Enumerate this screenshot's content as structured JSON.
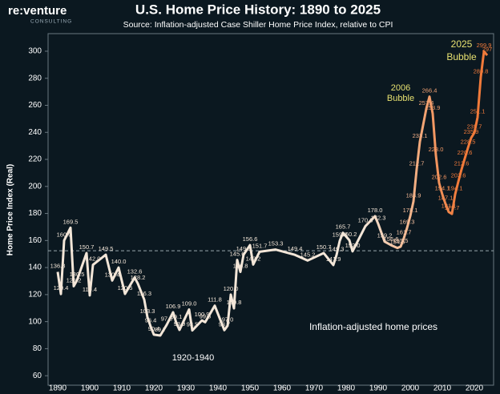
{
  "chart_data": {
    "type": "line",
    "title": "U.S. Home Price History: 1890 to 2025",
    "subtitle": "Source: Inflation-adjusted Case Shiller Home Price Index, relative to CPI",
    "logo": {
      "name": "re:venture",
      "tagline": "CONSULTING"
    },
    "y_label": "Home Price Index (Real)",
    "xlim": [
      1887,
      2026
    ],
    "ylim": [
      53,
      313
    ],
    "xticks": [
      1890,
      1900,
      1910,
      1920,
      1930,
      1940,
      1950,
      1960,
      1970,
      1980,
      1990,
      2000,
      2010,
      2020
    ],
    "yticks": [
      60,
      80,
      100,
      120,
      140,
      160,
      180,
      200,
      220,
      240,
      260,
      280,
      300
    ],
    "reference_line": 152.4,
    "colors": [
      "#f3e6d8",
      "#f07a3a"
    ],
    "annotations": [
      "2025",
      "Bubble",
      "2006",
      "Bubble",
      "1920-1940",
      "Inflation-adjusted home prices"
    ],
    "series": [
      {
        "name": "Inflation-adjusted home prices",
        "x": [
          1890,
          1891,
          1892,
          1894,
          1895,
          1896,
          1899,
          1900,
          1901,
          1905,
          1907,
          1909,
          1911,
          1914,
          1915,
          1917,
          1918,
          1919,
          1920,
          1922,
          1924,
          1926,
          1927,
          1928,
          1931,
          1932,
          1935,
          1936,
          1939,
          1942,
          1943,
          1944,
          1945,
          1946,
          1947,
          1948,
          1950,
          1951,
          1953,
          1958,
          1964,
          1968,
          1973,
          1976,
          1977,
          1978,
          1979,
          1981,
          1982,
          1986,
          1989,
          1990,
          1992,
          1994,
          1996,
          1997,
          1998,
          1999,
          2000,
          2001,
          2002,
          2003,
          2005,
          2006,
          2007,
          2008,
          2009,
          2010,
          2011,
          2012,
          2013,
          2014,
          2015,
          2016,
          2017,
          2018,
          2019,
          2020,
          2021,
          2022,
          2023,
          2024
        ],
        "values": [
          136.8,
          120.4,
          160.0,
          169.5,
          126.2,
          130.5,
          150.7,
          119.4,
          142.0,
          149.5,
          130.4,
          140.0,
          120.5,
          132.6,
          128.2,
          116.3,
          103.3,
          96.4,
          90.4,
          89.7,
          97.6,
          106.9,
          99.1,
          93.9,
          109.0,
          93.5,
          100.9,
          99.6,
          111.8,
          93.7,
          97.0,
          120.0,
          109.8,
          145.6,
          136.8,
          149.5,
          156.6,
          142.2,
          151.7,
          153.3,
          149.4,
          145.2,
          150.7,
          141.9,
          149.3,
          159.8,
          165.7,
          160.2,
          152.0,
          170.6,
          178.0,
          172.3,
          159.2,
          156.6,
          154.5,
          155.5,
          161.7,
          169.3,
          178.1,
          188.9,
          212.7,
          233.1,
          257.4,
          266.4,
          253.9,
          223.0,
          202.6,
          194.1,
          187.1,
          181.1,
          179.7,
          194.1,
          203.6,
          212.6,
          220.6,
          228.5,
          235.9,
          239.7,
          251.1,
          280.8,
          299.9,
          297
        ],
        "value_labels": [
          "136.8",
          "120.4",
          "160.0",
          "169.5",
          "126.2",
          "130.5",
          "150.7",
          "119.4",
          "142.0",
          "149.5",
          "130.4",
          "140.0",
          "120.5",
          "132.6",
          "128.2",
          "116.3",
          "103.3",
          "96.4",
          "90.4",
          "89.7",
          "97.6",
          "106.9",
          "99.1",
          "93.9",
          "109.0",
          "93.5",
          "100.9",
          "99.6",
          "111.8",
          "93.7",
          "97.0",
          "120.0",
          "109.8",
          "145.6",
          "136.8",
          "149.5",
          "156.6",
          "142.2",
          "151.7",
          "153.3",
          "149.4",
          "145.2",
          "150.7",
          "141.9",
          "149.3",
          "159.8",
          "165.7",
          "160.2",
          "152.0",
          "170.6",
          "178.0",
          "172.3",
          "159.2",
          "156.6",
          "154.5",
          "155.5",
          "161.7",
          "169.3",
          "178.1",
          "188.9",
          "212.7",
          "233.1",
          "257.4",
          "266.4",
          "253.9",
          "223.0",
          "202.6",
          "194.1",
          "187.1",
          "181.1",
          "179.7",
          "194.1",
          "203.6",
          "212.6",
          "220.6",
          "228.5",
          "235.9",
          "239.7",
          "251.1",
          "280.8",
          "299.9",
          "297"
        ]
      }
    ]
  }
}
